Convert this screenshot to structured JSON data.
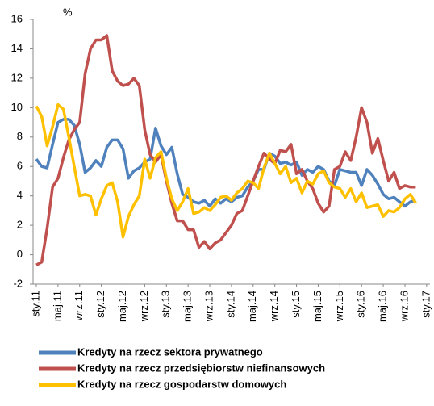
{
  "chart_data": {
    "type": "line",
    "y_label": "%",
    "categories": [
      "sty.11",
      null,
      null,
      null,
      "maj.11",
      null,
      null,
      null,
      "wrz.11",
      null,
      null,
      null,
      "sty.12",
      null,
      null,
      null,
      "maj.12",
      null,
      null,
      null,
      "wrz.12",
      null,
      null,
      null,
      "sty.13",
      null,
      null,
      null,
      "maj.13",
      null,
      null,
      null,
      "wrz.13",
      null,
      null,
      null,
      "sty.14",
      null,
      null,
      null,
      "maj.14",
      null,
      null,
      null,
      "wrz.14",
      null,
      null,
      null,
      "sty.15",
      null,
      null,
      null,
      "maj.15",
      null,
      null,
      null,
      "wrz.15",
      null,
      null,
      null,
      "sty.16",
      null,
      null,
      null,
      "maj.16",
      null,
      null,
      null,
      "wrz.16",
      null,
      null,
      null,
      "sty.17"
    ],
    "series": [
      {
        "name": "Kredyty na rzecz sektora prywatnego",
        "color": "#4f81bd",
        "values": [
          6.5,
          6.0,
          5.9,
          7.5,
          9.0,
          9.2,
          9.2,
          8.8,
          7.5,
          5.6,
          5.9,
          6.4,
          6.0,
          7.3,
          7.8,
          7.8,
          7.2,
          5.2,
          5.7,
          5.9,
          6.3,
          6.5,
          8.6,
          7.4,
          6.8,
          7.3,
          5.5,
          4.1,
          3.9,
          3.6,
          3.5,
          3.7,
          3.3,
          3.8,
          3.5,
          3.8,
          3.6,
          3.9,
          4.0,
          4.6,
          5.0,
          5.8,
          5.8,
          6.9,
          6.7,
          6.2,
          6.3,
          6.1,
          6.3,
          5.4,
          5.8,
          5.6,
          6.0,
          5.8,
          5.0,
          4.7,
          5.8,
          5.7,
          5.6,
          5.6,
          4.7,
          5.8,
          5.4,
          4.8,
          4.1,
          3.8,
          3.9,
          3.6,
          3.3,
          3.6,
          3.7,
          null,
          null
        ]
      },
      {
        "name": "Kredyty na rzecz przedsiębiorstw niefinansowych",
        "color": "#c0504d",
        "values": [
          -0.7,
          -0.5,
          1.8,
          4.6,
          5.2,
          6.6,
          7.8,
          8.5,
          9.0,
          12.3,
          14.0,
          14.6,
          14.6,
          14.9,
          12.5,
          11.8,
          11.5,
          11.6,
          12.0,
          11.5,
          8.5,
          6.8,
          6.3,
          6.8,
          5.0,
          3.5,
          2.3,
          2.3,
          1.7,
          1.7,
          0.5,
          0.9,
          0.4,
          0.8,
          1.0,
          1.5,
          2.0,
          2.8,
          3.0,
          4.0,
          5.0,
          6.0,
          6.9,
          6.5,
          6.2,
          7.1,
          7.0,
          7.5,
          5.5,
          5.8,
          5.0,
          4.5,
          3.5,
          2.9,
          3.3,
          5.8,
          6.0,
          7.0,
          6.4,
          8.0,
          10.0,
          9.0,
          6.9,
          7.9,
          6.4,
          5.0,
          5.6,
          4.5,
          4.7,
          4.6,
          4.6,
          null,
          null
        ]
      },
      {
        "name": "Kredyty na rzecz gospodarstw domowych",
        "color": "#ffc000",
        "values": [
          10.1,
          9.4,
          7.4,
          8.7,
          10.2,
          9.9,
          8.0,
          6.0,
          4.0,
          4.1,
          4.0,
          2.7,
          3.8,
          4.7,
          4.9,
          3.6,
          1.2,
          2.6,
          3.4,
          4.0,
          6.5,
          5.2,
          6.6,
          7.0,
          5.2,
          3.8,
          3.0,
          3.6,
          4.5,
          2.8,
          2.9,
          3.2,
          3.0,
          3.4,
          3.9,
          4.0,
          3.7,
          4.2,
          4.5,
          5.0,
          4.9,
          4.5,
          5.9,
          6.9,
          6.2,
          5.5,
          6.0,
          4.9,
          5.2,
          4.2,
          5.0,
          4.8,
          5.5,
          5.7,
          4.9,
          4.6,
          4.5,
          3.9,
          4.5,
          3.6,
          4.2,
          3.2,
          3.3,
          3.4,
          2.6,
          3.0,
          2.9,
          3.2,
          3.8,
          4.1,
          3.5,
          null,
          null
        ]
      }
    ],
    "ylim": [
      -2,
      16
    ],
    "yticks": [
      -2,
      0,
      2,
      4,
      6,
      8,
      10,
      12,
      14,
      16
    ],
    "grid": false
  }
}
